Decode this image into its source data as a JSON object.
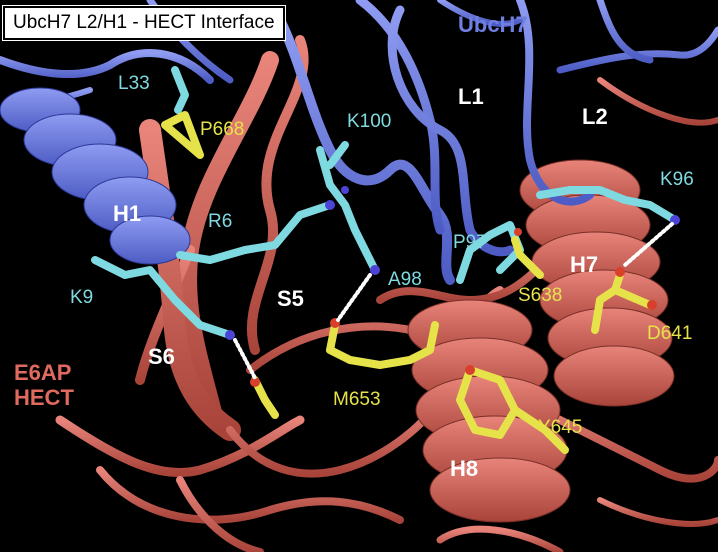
{
  "title": "UbcH7 L2/H1 - HECT Interface",
  "chains": {
    "ubch7": "UbcH7",
    "e6ap_line1": "E6AP",
    "e6ap_line2": "HECT"
  },
  "structure_labels": {
    "h1": "H1",
    "l1": "L1",
    "l2": "L2",
    "s5": "S5",
    "s6": "S6",
    "h7": "H7",
    "h8": "H8"
  },
  "ubch7_residues": {
    "l33": "L33",
    "k100": "K100",
    "r6": "R6",
    "k9": "K9",
    "p97": "P97",
    "a98": "A98",
    "k96": "K96"
  },
  "hect_residues": {
    "p668": "P668",
    "s638": "S638",
    "d641": "D641",
    "m653": "M653",
    "y645": "Y645"
  },
  "colors": {
    "ubch7_ribbon": "#6f7fe0",
    "hect_ribbon": "#d9655a",
    "ubch7_sticks": "#7fd9e0",
    "hect_sticks": "#e6e34a",
    "hbond": "#ffffff",
    "nitrogen": "#4b44d6",
    "oxygen": "#d8402c"
  }
}
